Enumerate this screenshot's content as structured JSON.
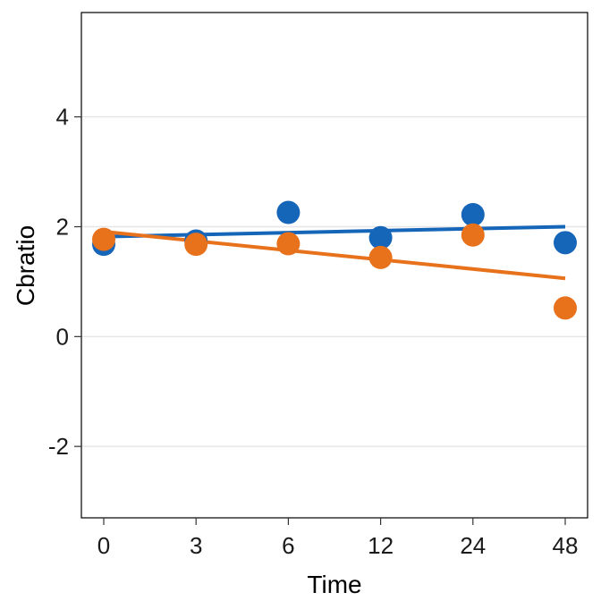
{
  "chart_data": {
    "type": "scatter",
    "xlabel": "Time",
    "ylabel": "Cbratio",
    "categories": [
      "0",
      "3",
      "6",
      "12",
      "24",
      "48"
    ],
    "ylim": [
      -3.3,
      5.9
    ],
    "yticks": [
      -2,
      0,
      2,
      4
    ],
    "grid": "horizontal-major",
    "legend": "none",
    "series": [
      {
        "color": "#1565b8",
        "values": [
          1.68,
          1.74,
          2.26,
          1.8,
          2.22,
          1.71
        ],
        "trend": [
          1.82,
          2.0
        ]
      },
      {
        "color": "#e8711c",
        "values": [
          1.77,
          1.68,
          1.69,
          1.44,
          1.85,
          0.52
        ],
        "trend": [
          1.91,
          1.06
        ]
      }
    ]
  }
}
